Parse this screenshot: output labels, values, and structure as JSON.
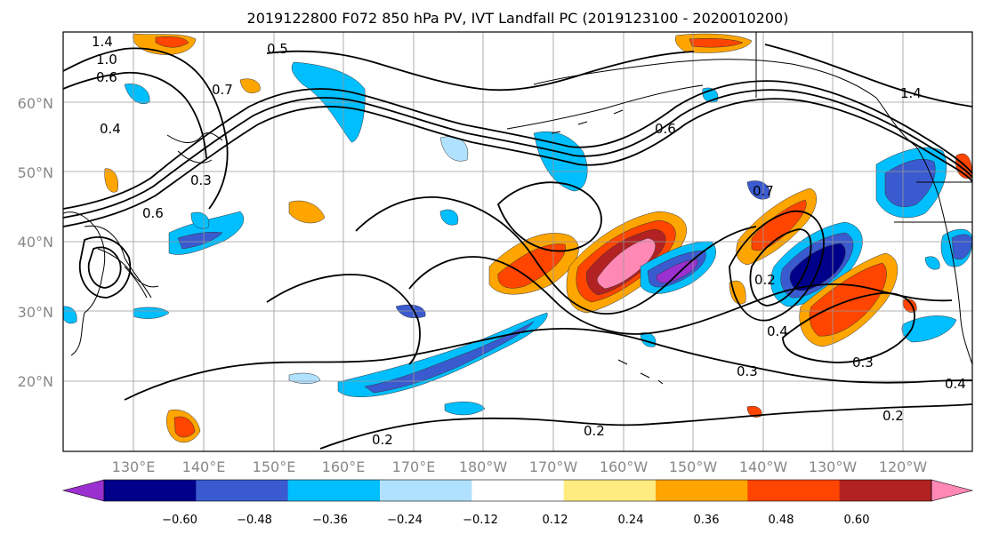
{
  "title": "2019122800 F072 850 hPa PV, IVT Landfall PC (2019123100 - 2020010200)",
  "map": {
    "lat_labels": [
      "60°N",
      "50°N",
      "40°N",
      "30°N",
      "20°N"
    ],
    "lon_labels": [
      "130°E",
      "140°E",
      "150°E",
      "160°E",
      "170°E",
      "180°W",
      "170°W",
      "160°W",
      "150°W",
      "140°W",
      "130°W",
      "120°W"
    ],
    "contour_labels": [
      "1.4",
      "1.0",
      "0.6",
      "0.5",
      "0.7",
      "0.4",
      "1.4",
      "0.6",
      "0.3",
      "0.6",
      "0.7",
      "0.2",
      "0.4",
      "0.3",
      "0.3",
      "0.4",
      "0.2",
      "0.2",
      "0.2"
    ]
  },
  "colorbar": {
    "ticks": [
      "−0.60",
      "−0.48",
      "−0.36",
      "−0.24",
      "−0.12",
      "0.12",
      "0.24",
      "0.36",
      "0.48",
      "0.60"
    ],
    "colors": [
      "#9b30d0",
      "#00008b",
      "#3a5bd0",
      "#00bfff",
      "#b0e2ff",
      "#ffffff",
      "#ffec80",
      "#ffa500",
      "#ff4500",
      "#b22222",
      "#ff88b4"
    ]
  }
}
